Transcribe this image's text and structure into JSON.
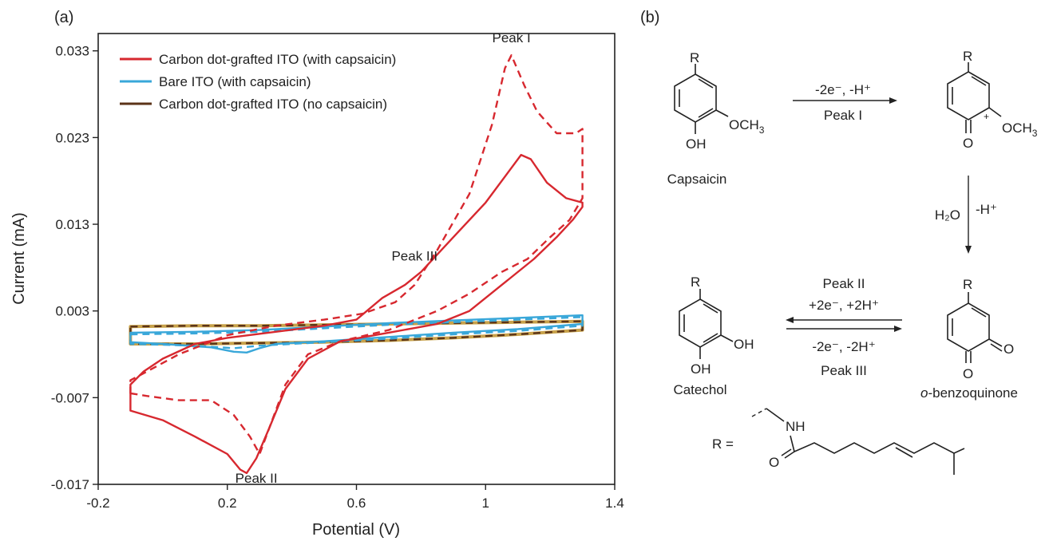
{
  "panel_a_label": "(a)",
  "panel_b_label": "(b)",
  "chart_data": {
    "type": "line",
    "xlabel": "Potential (V)",
    "ylabel": "Current (mA)",
    "xlim": [
      -0.2,
      1.4
    ],
    "ylim": [
      -0.017,
      0.035
    ],
    "x_ticks": [
      "-0.2",
      "0.2",
      "0.6",
      "1",
      "1.4"
    ],
    "x_tick_values": [
      -0.2,
      0.2,
      0.6,
      1.0,
      1.4
    ],
    "y_ticks": [
      "-0.017",
      "-0.007",
      "0.003",
      "0.013",
      "0.023",
      "0.033"
    ],
    "y_tick_values": [
      -0.017,
      -0.007,
      0.003,
      0.013,
      0.023,
      0.033
    ],
    "grid": false,
    "legend_position": "top-left",
    "series": [
      {
        "name": "Carbon dot-grafted ITO (with capsaicin)",
        "color": "#d7282f",
        "style": "solid",
        "points": [
          [
            -0.1,
            -0.0085
          ],
          [
            0,
            -0.0096
          ],
          [
            0.1,
            -0.0115
          ],
          [
            0.2,
            -0.0135
          ],
          [
            0.24,
            -0.0153
          ],
          [
            0.26,
            -0.0157
          ],
          [
            0.29,
            -0.014
          ],
          [
            0.33,
            -0.0105
          ],
          [
            0.38,
            -0.006
          ],
          [
            0.45,
            -0.0025
          ],
          [
            0.55,
            -0.0005
          ],
          [
            0.7,
            0.0005
          ],
          [
            0.85,
            0.0015
          ],
          [
            0.95,
            0.003
          ],
          [
            1.05,
            0.006
          ],
          [
            1.15,
            0.009
          ],
          [
            1.22,
            0.0115
          ],
          [
            1.27,
            0.0135
          ],
          [
            1.3,
            0.015
          ],
          [
            1.3,
            0.0155
          ],
          [
            1.25,
            0.016
          ],
          [
            1.19,
            0.0178
          ],
          [
            1.14,
            0.0205
          ],
          [
            1.11,
            0.021
          ],
          [
            1.07,
            0.019
          ],
          [
            1.0,
            0.0155
          ],
          [
            0.9,
            0.0115
          ],
          [
            0.85,
            0.0095
          ],
          [
            0.8,
            0.0075
          ],
          [
            0.75,
            0.006
          ],
          [
            0.68,
            0.0045
          ],
          [
            0.6,
            0.002
          ],
          [
            0.5,
            0.0013
          ],
          [
            0.35,
            0.0006
          ],
          [
            0.2,
            -0.0001
          ],
          [
            0.1,
            -0.0008
          ],
          [
            0,
            -0.0025
          ],
          [
            -0.06,
            -0.004
          ],
          [
            -0.1,
            -0.0055
          ]
        ]
      },
      {
        "name": "Carbon dot-grafted ITO (with capsaicin), dashed",
        "color": "#d7282f",
        "style": "dashed",
        "points": [
          [
            -0.1,
            -0.0065
          ],
          [
            -0.05,
            -0.0068
          ],
          [
            0.05,
            -0.0073
          ],
          [
            0.15,
            -0.0073
          ],
          [
            0.22,
            -0.009
          ],
          [
            0.27,
            -0.0115
          ],
          [
            0.3,
            -0.0135
          ],
          [
            0.33,
            -0.0105
          ],
          [
            0.38,
            -0.0055
          ],
          [
            0.45,
            -0.002
          ],
          [
            0.55,
            -0.0005
          ],
          [
            0.7,
            0.0008
          ],
          [
            0.85,
            0.003
          ],
          [
            0.95,
            0.005
          ],
          [
            1.05,
            0.0075
          ],
          [
            1.13,
            0.009
          ],
          [
            1.2,
            0.0115
          ],
          [
            1.26,
            0.0135
          ],
          [
            1.3,
            0.016
          ],
          [
            1.3,
            0.024
          ],
          [
            1.28,
            0.0235
          ],
          [
            1.22,
            0.0235
          ],
          [
            1.16,
            0.026
          ],
          [
            1.12,
            0.029
          ],
          [
            1.08,
            0.0325
          ],
          [
            1.06,
            0.031
          ],
          [
            1.02,
            0.0245
          ],
          [
            0.95,
            0.0165
          ],
          [
            0.85,
            0.01
          ],
          [
            0.78,
            0.006
          ],
          [
            0.72,
            0.004
          ],
          [
            0.62,
            0.0027
          ],
          [
            0.5,
            0.002
          ],
          [
            0.35,
            0.0013
          ],
          [
            0.2,
            0.0002
          ],
          [
            0.05,
            -0.002
          ],
          [
            -0.05,
            -0.004
          ],
          [
            -0.1,
            -0.005
          ]
        ]
      },
      {
        "name": "Bare ITO (with capsaicin)",
        "color": "#39a7d9",
        "style": "solid",
        "points": [
          [
            -0.1,
            0.0005
          ],
          [
            0.1,
            0.0006
          ],
          [
            0.3,
            0.0008
          ],
          [
            0.5,
            0.0012
          ],
          [
            0.7,
            0.0016
          ],
          [
            0.9,
            0.0019
          ],
          [
            1.1,
            0.0022
          ],
          [
            1.3,
            0.0025
          ],
          [
            1.3,
            0.0015
          ],
          [
            1.1,
            0.0009
          ],
          [
            0.9,
            0.0005
          ],
          [
            0.7,
            0.0
          ],
          [
            0.5,
            -0.0005
          ],
          [
            0.35,
            -0.0008
          ],
          [
            0.3,
            -0.0013
          ],
          [
            0.26,
            -0.0018
          ],
          [
            0.22,
            -0.0017
          ],
          [
            0.15,
            -0.0012
          ],
          [
            0.0,
            -0.0008
          ],
          [
            -0.1,
            -0.0006
          ]
        ]
      },
      {
        "name": "Bare ITO (with capsaicin), dashed",
        "color": "#39a7d9",
        "style": "dashed",
        "points": [
          [
            -0.1,
            0.0003
          ],
          [
            0.1,
            0.0004
          ],
          [
            0.3,
            0.0006
          ],
          [
            0.5,
            0.001
          ],
          [
            0.7,
            0.0014
          ],
          [
            0.9,
            0.0017
          ],
          [
            1.1,
            0.002
          ],
          [
            1.3,
            0.0023
          ],
          [
            1.3,
            0.0013
          ],
          [
            1.1,
            0.0007
          ],
          [
            0.9,
            0.0003
          ],
          [
            0.7,
            -0.0002
          ],
          [
            0.5,
            -0.0006
          ],
          [
            0.3,
            -0.001
          ],
          [
            0.22,
            -0.0013
          ],
          [
            0.1,
            -0.001
          ],
          [
            -0.1,
            -0.0008
          ]
        ]
      },
      {
        "name": "Carbon dot-grafted ITO (no capsaicin)",
        "color": "#c8a24a",
        "style": "solid",
        "points": [
          [
            -0.1,
            0.0012
          ],
          [
            0.1,
            0.0013
          ],
          [
            0.3,
            0.0013
          ],
          [
            0.5,
            0.0014
          ],
          [
            0.7,
            0.0015
          ],
          [
            0.9,
            0.0016
          ],
          [
            1.1,
            0.0017
          ],
          [
            1.3,
            0.0018
          ],
          [
            1.3,
            0.0008
          ],
          [
            1.1,
            0.0003
          ],
          [
            0.9,
            -0.0001
          ],
          [
            0.7,
            -0.0004
          ],
          [
            0.5,
            -0.0006
          ],
          [
            0.3,
            -0.0007
          ],
          [
            0.1,
            -0.0008
          ],
          [
            -0.1,
            -0.0008
          ]
        ]
      },
      {
        "name": "Carbon dot-grafted ITO (no capsaicin), dashed",
        "color": "#5b3318",
        "style": "dashed",
        "points": [
          [
            -0.1,
            0.0012
          ],
          [
            0.1,
            0.0013
          ],
          [
            0.3,
            0.0013
          ],
          [
            0.5,
            0.0014
          ],
          [
            0.7,
            0.0015
          ],
          [
            0.9,
            0.0016
          ],
          [
            1.1,
            0.0017
          ],
          [
            1.3,
            0.0018
          ],
          [
            1.3,
            0.0008
          ],
          [
            1.1,
            0.0003
          ],
          [
            0.9,
            -0.0001
          ],
          [
            0.7,
            -0.0004
          ],
          [
            0.5,
            -0.0006
          ],
          [
            0.3,
            -0.0007
          ],
          [
            0.1,
            -0.0008
          ],
          [
            -0.1,
            -0.0008
          ]
        ]
      }
    ],
    "legend": [
      {
        "label": "Carbon dot-grafted ITO (with capsaicin)",
        "color": "#d7282f"
      },
      {
        "label": "Bare ITO (with capsaicin)",
        "color": "#39a7d9"
      },
      {
        "label": "Carbon dot-grafted ITO (no capsaicin)",
        "color": "#5b3318"
      }
    ],
    "annotations": [
      {
        "text": "Peak I",
        "x": 1.08,
        "y": 0.034
      },
      {
        "text": "Peak III",
        "x": 0.78,
        "y": 0.0088
      },
      {
        "text": "Peak II",
        "x": 0.29,
        "y": -0.0168
      }
    ]
  },
  "scheme": {
    "capsaicin_label": "Capsaicin",
    "catechol_label": "Catechol",
    "obenzoquinone_prefix": "o",
    "obenzoquinone_suffix": "-benzoquinone",
    "step1_top": "-2e⁻, -H⁺",
    "step1_bottom": "Peak I",
    "step2_h2o": "H₂O",
    "step2_h": "-H⁺",
    "step3_top1": "Peak II",
    "step3_top2": "+2e⁻, +2H⁺",
    "step3_bottom1": "-2e⁻, -2H⁺",
    "step3_bottom2": "Peak III",
    "r": "R",
    "oh": "OH",
    "och3": "OCH",
    "och3_sub": "3",
    "o": "O",
    "plus": "+",
    "r_equals": "R =",
    "nh": "NH"
  }
}
